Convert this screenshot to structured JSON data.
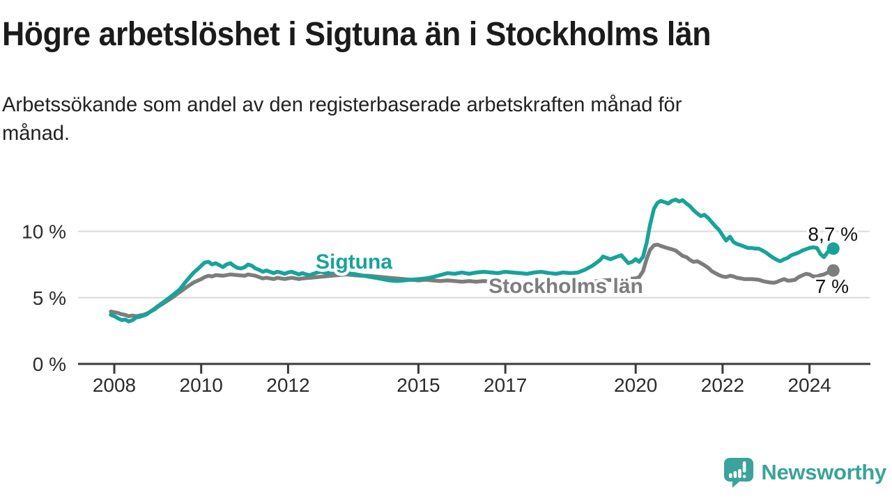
{
  "header": {
    "title": "Högre arbetslöshet i Sigtuna än i Stockholms län",
    "subtitle": "Arbetssökande som andel av den registerbaserade arbetskraften månad för\nmånad."
  },
  "branding": {
    "logo_text": "Newsworthy",
    "logo_icon": "speech-bubble-bar-chart-exclamation",
    "color": "#3AA39B"
  },
  "chart_data": {
    "type": "line",
    "title": "Högre arbetslöshet i Sigtuna än i Stockholms län",
    "xlabel": "",
    "ylabel": "",
    "x_unit": "year",
    "y_unit": "%",
    "xlim": [
      2007.8,
      2025.4
    ],
    "ylim": [
      0,
      13
    ],
    "grid": true,
    "grid_color": "#dadada",
    "axis_color": "#3a3a3a",
    "x_ticks": [
      2008,
      2010,
      2012,
      2015,
      2017,
      2020,
      2022,
      2024
    ],
    "y_ticks": [
      {
        "label": "0 %",
        "value": 0
      },
      {
        "label": "5 %",
        "value": 5
      },
      {
        "label": "10 %",
        "value": 10
      }
    ],
    "legend_position": "inline-labels",
    "series": [
      {
        "name": "Sigtuna",
        "color": "#17A39A",
        "end_label": "8,7 %",
        "end_value": 8.7,
        "points": [
          [
            2007.92,
            3.7
          ],
          [
            2008.0,
            3.6
          ],
          [
            2008.08,
            3.45
          ],
          [
            2008.17,
            3.3
          ],
          [
            2008.25,
            3.35
          ],
          [
            2008.33,
            3.2
          ],
          [
            2008.42,
            3.3
          ],
          [
            2008.5,
            3.5
          ],
          [
            2008.58,
            3.55
          ],
          [
            2008.67,
            3.65
          ],
          [
            2008.75,
            3.75
          ],
          [
            2008.83,
            3.95
          ],
          [
            2008.92,
            4.15
          ],
          [
            2009.0,
            4.35
          ],
          [
            2009.17,
            4.75
          ],
          [
            2009.33,
            5.15
          ],
          [
            2009.5,
            5.6
          ],
          [
            2009.67,
            6.3
          ],
          [
            2009.83,
            6.9
          ],
          [
            2009.92,
            7.15
          ],
          [
            2010.0,
            7.4
          ],
          [
            2010.08,
            7.65
          ],
          [
            2010.17,
            7.7
          ],
          [
            2010.25,
            7.5
          ],
          [
            2010.33,
            7.6
          ],
          [
            2010.42,
            7.45
          ],
          [
            2010.5,
            7.3
          ],
          [
            2010.58,
            7.5
          ],
          [
            2010.67,
            7.6
          ],
          [
            2010.75,
            7.4
          ],
          [
            2010.83,
            7.25
          ],
          [
            2010.92,
            7.2
          ],
          [
            2011.0,
            7.3
          ],
          [
            2011.08,
            7.5
          ],
          [
            2011.17,
            7.4
          ],
          [
            2011.25,
            7.2
          ],
          [
            2011.33,
            7.1
          ],
          [
            2011.42,
            6.95
          ],
          [
            2011.5,
            7.05
          ],
          [
            2011.58,
            6.95
          ],
          [
            2011.67,
            6.85
          ],
          [
            2011.75,
            6.95
          ],
          [
            2011.83,
            6.9
          ],
          [
            2011.92,
            6.8
          ],
          [
            2012.0,
            6.9
          ],
          [
            2012.08,
            6.95
          ],
          [
            2012.17,
            6.85
          ],
          [
            2012.25,
            6.75
          ],
          [
            2012.33,
            6.85
          ],
          [
            2012.42,
            6.75
          ],
          [
            2012.5,
            6.7
          ],
          [
            2012.58,
            6.8
          ],
          [
            2012.67,
            6.9
          ],
          [
            2012.75,
            6.95
          ],
          [
            2012.83,
            6.9
          ],
          [
            2012.92,
            6.85
          ],
          [
            2013.0,
            6.95
          ],
          [
            2013.17,
            6.9
          ],
          [
            2013.33,
            6.85
          ],
          [
            2013.5,
            6.8
          ],
          [
            2013.67,
            6.7
          ],
          [
            2013.83,
            6.6
          ],
          [
            2014.0,
            6.5
          ],
          [
            2014.17,
            6.4
          ],
          [
            2014.33,
            6.3
          ],
          [
            2014.5,
            6.25
          ],
          [
            2014.67,
            6.3
          ],
          [
            2014.83,
            6.35
          ],
          [
            2015.0,
            6.4
          ],
          [
            2015.17,
            6.45
          ],
          [
            2015.33,
            6.55
          ],
          [
            2015.5,
            6.7
          ],
          [
            2015.67,
            6.85
          ],
          [
            2015.83,
            6.8
          ],
          [
            2016.0,
            6.9
          ],
          [
            2016.17,
            6.8
          ],
          [
            2016.33,
            6.9
          ],
          [
            2016.5,
            6.95
          ],
          [
            2016.67,
            6.9
          ],
          [
            2016.83,
            6.85
          ],
          [
            2017.0,
            6.95
          ],
          [
            2017.17,
            6.9
          ],
          [
            2017.33,
            6.85
          ],
          [
            2017.5,
            6.8
          ],
          [
            2017.67,
            6.9
          ],
          [
            2017.83,
            6.95
          ],
          [
            2018.0,
            6.85
          ],
          [
            2018.17,
            6.8
          ],
          [
            2018.33,
            6.9
          ],
          [
            2018.5,
            6.85
          ],
          [
            2018.67,
            6.9
          ],
          [
            2018.83,
            7.1
          ],
          [
            2019.0,
            7.4
          ],
          [
            2019.17,
            7.8
          ],
          [
            2019.25,
            8.1
          ],
          [
            2019.33,
            8.0
          ],
          [
            2019.42,
            7.9
          ],
          [
            2019.5,
            8.0
          ],
          [
            2019.58,
            8.1
          ],
          [
            2019.67,
            8.2
          ],
          [
            2019.75,
            7.9
          ],
          [
            2019.83,
            7.6
          ],
          [
            2019.92,
            7.7
          ],
          [
            2020.0,
            7.9
          ],
          [
            2020.08,
            7.7
          ],
          [
            2020.17,
            8.1
          ],
          [
            2020.25,
            9.1
          ],
          [
            2020.33,
            10.5
          ],
          [
            2020.42,
            11.7
          ],
          [
            2020.5,
            12.15
          ],
          [
            2020.58,
            12.3
          ],
          [
            2020.67,
            12.2
          ],
          [
            2020.75,
            12.1
          ],
          [
            2020.83,
            12.3
          ],
          [
            2020.92,
            12.4
          ],
          [
            2021.0,
            12.25
          ],
          [
            2021.08,
            12.35
          ],
          [
            2021.17,
            12.1
          ],
          [
            2021.25,
            11.9
          ],
          [
            2021.33,
            11.6
          ],
          [
            2021.42,
            11.35
          ],
          [
            2021.5,
            11.15
          ],
          [
            2021.58,
            11.25
          ],
          [
            2021.67,
            11.0
          ],
          [
            2021.75,
            10.7
          ],
          [
            2021.83,
            10.4
          ],
          [
            2021.92,
            10.1
          ],
          [
            2022.0,
            9.7
          ],
          [
            2022.08,
            9.3
          ],
          [
            2022.17,
            9.6
          ],
          [
            2022.25,
            9.2
          ],
          [
            2022.33,
            9.05
          ],
          [
            2022.42,
            8.95
          ],
          [
            2022.5,
            8.85
          ],
          [
            2022.58,
            8.75
          ],
          [
            2022.67,
            8.75
          ],
          [
            2022.75,
            8.7
          ],
          [
            2022.83,
            8.7
          ],
          [
            2022.92,
            8.55
          ],
          [
            2023.0,
            8.4
          ],
          [
            2023.08,
            8.2
          ],
          [
            2023.17,
            8.0
          ],
          [
            2023.25,
            7.85
          ],
          [
            2023.33,
            7.75
          ],
          [
            2023.42,
            7.9
          ],
          [
            2023.5,
            8.0
          ],
          [
            2023.58,
            8.2
          ],
          [
            2023.67,
            8.3
          ],
          [
            2023.75,
            8.4
          ],
          [
            2023.83,
            8.55
          ],
          [
            2023.92,
            8.65
          ],
          [
            2024.0,
            8.75
          ],
          [
            2024.08,
            8.8
          ],
          [
            2024.17,
            8.75
          ],
          [
            2024.25,
            8.3
          ],
          [
            2024.33,
            8.05
          ],
          [
            2024.42,
            8.45
          ],
          [
            2024.5,
            8.7
          ]
        ]
      },
      {
        "name": "Stockholms län",
        "color": "#7d7d7d",
        "end_label": "7 %",
        "end_value": 7.0,
        "points": [
          [
            2007.92,
            3.95
          ],
          [
            2008.0,
            3.9
          ],
          [
            2008.08,
            3.85
          ],
          [
            2008.17,
            3.75
          ],
          [
            2008.25,
            3.7
          ],
          [
            2008.33,
            3.6
          ],
          [
            2008.42,
            3.65
          ],
          [
            2008.5,
            3.6
          ],
          [
            2008.58,
            3.65
          ],
          [
            2008.67,
            3.7
          ],
          [
            2008.75,
            3.8
          ],
          [
            2008.83,
            3.95
          ],
          [
            2008.92,
            4.1
          ],
          [
            2009.0,
            4.3
          ],
          [
            2009.17,
            4.65
          ],
          [
            2009.33,
            5.0
          ],
          [
            2009.5,
            5.4
          ],
          [
            2009.67,
            5.8
          ],
          [
            2009.83,
            6.15
          ],
          [
            2010.0,
            6.4
          ],
          [
            2010.08,
            6.55
          ],
          [
            2010.17,
            6.65
          ],
          [
            2010.25,
            6.6
          ],
          [
            2010.33,
            6.7
          ],
          [
            2010.5,
            6.65
          ],
          [
            2010.67,
            6.75
          ],
          [
            2010.83,
            6.7
          ],
          [
            2011.0,
            6.65
          ],
          [
            2011.08,
            6.75
          ],
          [
            2011.17,
            6.7
          ],
          [
            2011.25,
            6.65
          ],
          [
            2011.33,
            6.55
          ],
          [
            2011.42,
            6.45
          ],
          [
            2011.5,
            6.5
          ],
          [
            2011.58,
            6.45
          ],
          [
            2011.67,
            6.4
          ],
          [
            2011.75,
            6.5
          ],
          [
            2011.83,
            6.45
          ],
          [
            2011.92,
            6.4
          ],
          [
            2012.0,
            6.45
          ],
          [
            2012.08,
            6.5
          ],
          [
            2012.17,
            6.45
          ],
          [
            2012.25,
            6.4
          ],
          [
            2012.33,
            6.45
          ],
          [
            2012.5,
            6.5
          ],
          [
            2012.67,
            6.55
          ],
          [
            2012.83,
            6.6
          ],
          [
            2013.0,
            6.65
          ],
          [
            2013.17,
            6.7
          ],
          [
            2013.33,
            6.75
          ],
          [
            2013.5,
            6.7
          ],
          [
            2013.67,
            6.65
          ],
          [
            2013.83,
            6.65
          ],
          [
            2014.0,
            6.6
          ],
          [
            2014.17,
            6.55
          ],
          [
            2014.33,
            6.5
          ],
          [
            2014.5,
            6.45
          ],
          [
            2014.67,
            6.4
          ],
          [
            2014.83,
            6.35
          ],
          [
            2015.0,
            6.3
          ],
          [
            2015.17,
            6.35
          ],
          [
            2015.33,
            6.3
          ],
          [
            2015.5,
            6.25
          ],
          [
            2015.67,
            6.3
          ],
          [
            2015.83,
            6.25
          ],
          [
            2016.0,
            6.2
          ],
          [
            2016.17,
            6.25
          ],
          [
            2016.33,
            6.2
          ],
          [
            2016.5,
            6.25
          ],
          [
            2016.67,
            6.2
          ],
          [
            2016.83,
            6.15
          ],
          [
            2017.0,
            6.2
          ],
          [
            2017.25,
            6.15
          ],
          [
            2017.5,
            6.1
          ],
          [
            2017.75,
            6.1
          ],
          [
            2018.0,
            6.05
          ],
          [
            2018.25,
            6.05
          ],
          [
            2018.5,
            6.1
          ],
          [
            2018.75,
            6.15
          ],
          [
            2019.0,
            6.2
          ],
          [
            2019.25,
            6.3
          ],
          [
            2019.5,
            6.35
          ],
          [
            2019.75,
            6.4
          ],
          [
            2020.0,
            6.45
          ],
          [
            2020.08,
            6.55
          ],
          [
            2020.17,
            7.0
          ],
          [
            2020.25,
            7.9
          ],
          [
            2020.33,
            8.6
          ],
          [
            2020.42,
            8.95
          ],
          [
            2020.5,
            9.0
          ],
          [
            2020.58,
            8.9
          ],
          [
            2020.67,
            8.8
          ],
          [
            2020.75,
            8.72
          ],
          [
            2020.83,
            8.65
          ],
          [
            2020.92,
            8.55
          ],
          [
            2021.0,
            8.35
          ],
          [
            2021.08,
            8.15
          ],
          [
            2021.17,
            8.05
          ],
          [
            2021.25,
            7.85
          ],
          [
            2021.33,
            7.7
          ],
          [
            2021.42,
            7.75
          ],
          [
            2021.5,
            7.6
          ],
          [
            2021.58,
            7.45
          ],
          [
            2021.67,
            7.25
          ],
          [
            2021.75,
            7.0
          ],
          [
            2021.83,
            6.85
          ],
          [
            2021.92,
            6.7
          ],
          [
            2022.0,
            6.6
          ],
          [
            2022.08,
            6.55
          ],
          [
            2022.17,
            6.65
          ],
          [
            2022.25,
            6.6
          ],
          [
            2022.33,
            6.5
          ],
          [
            2022.42,
            6.45
          ],
          [
            2022.5,
            6.4
          ],
          [
            2022.67,
            6.4
          ],
          [
            2022.83,
            6.35
          ],
          [
            2022.92,
            6.25
          ],
          [
            2023.0,
            6.2
          ],
          [
            2023.08,
            6.15
          ],
          [
            2023.17,
            6.12
          ],
          [
            2023.25,
            6.18
          ],
          [
            2023.33,
            6.3
          ],
          [
            2023.42,
            6.4
          ],
          [
            2023.5,
            6.28
          ],
          [
            2023.58,
            6.3
          ],
          [
            2023.67,
            6.35
          ],
          [
            2023.75,
            6.55
          ],
          [
            2023.83,
            6.67
          ],
          [
            2023.92,
            6.8
          ],
          [
            2024.0,
            6.75
          ],
          [
            2024.08,
            6.6
          ],
          [
            2024.17,
            6.6
          ],
          [
            2024.25,
            6.7
          ],
          [
            2024.33,
            6.75
          ],
          [
            2024.42,
            6.9
          ],
          [
            2024.5,
            7.05
          ]
        ]
      }
    ]
  }
}
